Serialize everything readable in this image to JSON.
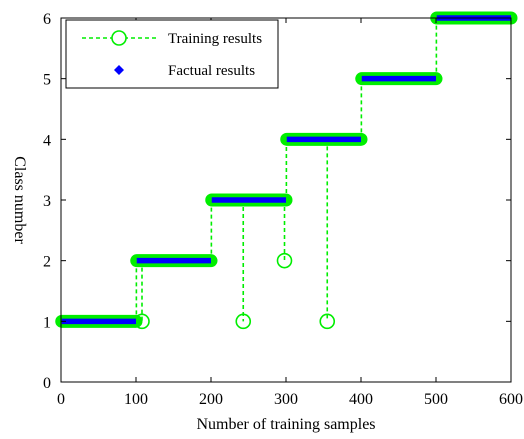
{
  "chart_data": {
    "type": "line",
    "title": "",
    "xlabel": "Number of training samples",
    "ylabel": "Class number",
    "xlim": [
      0,
      600
    ],
    "ylim": [
      0,
      6
    ],
    "xticks": [
      0,
      100,
      200,
      300,
      400,
      500,
      600
    ],
    "yticks": [
      0,
      1,
      2,
      3,
      4,
      5,
      6
    ],
    "grid": false,
    "legend_position": "top-left",
    "series": [
      {
        "name": "Training results",
        "style": "dashed line with circle markers",
        "color": "#00ee00",
        "steps": [
          {
            "x_start": 1,
            "x_end": 100,
            "y": 1
          },
          {
            "x_start": 101,
            "x_end": 200,
            "y": 2
          },
          {
            "x_start": 201,
            "x_end": 300,
            "y": 3
          },
          {
            "x_start": 301,
            "x_end": 400,
            "y": 4
          },
          {
            "x_start": 401,
            "x_end": 500,
            "y": 5
          },
          {
            "x_start": 501,
            "x_end": 600,
            "y": 6
          }
        ],
        "errors": [
          {
            "x": 108,
            "y": 1
          },
          {
            "x": 243,
            "y": 1
          },
          {
            "x": 298,
            "y": 2
          },
          {
            "x": 355,
            "y": 1
          }
        ]
      },
      {
        "name": "Factual results",
        "style": "diamond markers",
        "color": "#0000ff",
        "steps": [
          {
            "x_start": 1,
            "x_end": 100,
            "y": 1
          },
          {
            "x_start": 101,
            "x_end": 200,
            "y": 2
          },
          {
            "x_start": 201,
            "x_end": 300,
            "y": 3
          },
          {
            "x_start": 301,
            "x_end": 400,
            "y": 4
          },
          {
            "x_start": 401,
            "x_end": 500,
            "y": 5
          },
          {
            "x_start": 501,
            "x_end": 600,
            "y": 6
          }
        ]
      }
    ]
  }
}
